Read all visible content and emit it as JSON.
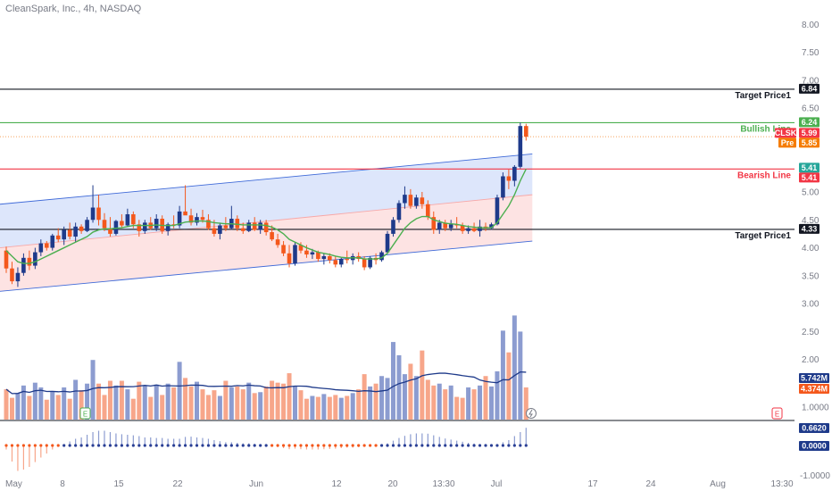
{
  "header": {
    "title": "CleanSpark, Inc., 4h, NASDAQ"
  },
  "chart_data": {
    "type": "candlestick",
    "title": "CleanSpark, Inc., 4h, NASDAQ",
    "symbol": "CLSK",
    "yaxis": {
      "ticks": [
        "8.00",
        "7.50",
        "7.00",
        "6.50",
        "6.00",
        "5.50",
        "5.00",
        "4.50",
        "4.00",
        "3.50",
        "3.00",
        "2.50",
        "2.00",
        "1.0000"
      ],
      "min": 0.9,
      "max": 8.1
    },
    "xaxis": {
      "ticks": [
        "May",
        "8",
        "15",
        "22",
        "Jun",
        "12",
        "20",
        "13:30",
        "Jul",
        "17",
        "24",
        "Aug",
        "13:30"
      ]
    },
    "candles": [
      [
        3.95,
        4.02,
        3.55,
        3.63
      ],
      [
        3.63,
        3.75,
        3.35,
        3.4
      ],
      [
        3.4,
        3.65,
        3.3,
        3.55
      ],
      [
        3.55,
        3.9,
        3.5,
        3.82
      ],
      [
        3.82,
        3.95,
        3.6,
        3.68
      ],
      [
        3.68,
        4.0,
        3.62,
        3.92
      ],
      [
        3.92,
        4.15,
        3.85,
        4.08
      ],
      [
        4.08,
        4.12,
        3.95,
        4.0
      ],
      [
        4.0,
        4.25,
        3.95,
        4.22
      ],
      [
        4.22,
        4.35,
        4.1,
        4.15
      ],
      [
        4.15,
        4.38,
        4.05,
        4.32
      ],
      [
        4.32,
        4.45,
        4.15,
        4.2
      ],
      [
        4.2,
        4.45,
        4.1,
        4.38
      ],
      [
        4.38,
        4.42,
        4.25,
        4.3
      ],
      [
        4.3,
        4.55,
        4.28,
        4.5
      ],
      [
        4.5,
        5.12,
        4.45,
        4.72
      ],
      [
        4.72,
        4.95,
        4.4,
        4.5
      ],
      [
        4.5,
        4.62,
        4.3,
        4.35
      ],
      [
        4.35,
        4.55,
        4.2,
        4.25
      ],
      [
        4.25,
        4.5,
        4.22,
        4.48
      ],
      [
        4.48,
        4.6,
        4.35,
        4.4
      ],
      [
        4.4,
        4.7,
        4.38,
        4.6
      ],
      [
        4.6,
        4.65,
        4.35,
        4.42
      ],
      [
        4.42,
        4.5,
        4.2,
        4.3
      ],
      [
        4.3,
        4.5,
        4.25,
        4.45
      ],
      [
        4.45,
        4.55,
        4.32,
        4.35
      ],
      [
        4.35,
        4.6,
        4.3,
        4.52
      ],
      [
        4.52,
        4.58,
        4.25,
        4.3
      ],
      [
        4.3,
        4.45,
        4.22,
        4.42
      ],
      [
        4.42,
        4.58,
        4.35,
        4.4
      ],
      [
        4.4,
        4.75,
        4.35,
        4.65
      ],
      [
        4.65,
        5.12,
        4.6,
        4.58
      ],
      [
        4.58,
        4.7,
        4.4,
        4.45
      ],
      [
        4.45,
        4.62,
        4.4,
        4.55
      ],
      [
        4.55,
        4.68,
        4.45,
        4.5
      ],
      [
        4.5,
        4.6,
        4.32,
        4.35
      ],
      [
        4.35,
        4.5,
        4.2,
        4.25
      ],
      [
        4.25,
        4.45,
        4.15,
        4.4
      ],
      [
        4.4,
        4.55,
        4.3,
        4.35
      ],
      [
        4.35,
        4.75,
        4.32,
        4.52
      ],
      [
        4.52,
        4.58,
        4.3,
        4.35
      ],
      [
        4.35,
        4.45,
        4.25,
        4.3
      ],
      [
        4.3,
        4.5,
        4.28,
        4.45
      ],
      [
        4.45,
        4.55,
        4.3,
        4.32
      ],
      [
        4.32,
        4.5,
        4.25,
        4.45
      ],
      [
        4.45,
        4.5,
        4.22,
        4.28
      ],
      [
        4.28,
        4.4,
        4.12,
        4.15
      ],
      [
        4.15,
        4.25,
        4.0,
        4.05
      ],
      [
        4.05,
        4.12,
        3.85,
        3.9
      ],
      [
        3.9,
        4.05,
        3.65,
        3.72
      ],
      [
        3.72,
        4.1,
        3.68,
        4.05
      ],
      [
        4.05,
        4.1,
        3.9,
        3.95
      ],
      [
        3.95,
        4.05,
        3.82,
        3.88
      ],
      [
        3.88,
        3.98,
        3.8,
        3.92
      ],
      [
        3.92,
        3.95,
        3.75,
        3.8
      ],
      [
        3.8,
        3.9,
        3.7,
        3.85
      ],
      [
        3.85,
        3.9,
        3.72,
        3.78
      ],
      [
        3.78,
        3.85,
        3.65,
        3.7
      ],
      [
        3.7,
        3.82,
        3.65,
        3.8
      ],
      [
        3.8,
        3.95,
        3.72,
        3.78
      ],
      [
        3.78,
        3.9,
        3.7,
        3.85
      ],
      [
        3.85,
        3.92,
        3.75,
        3.8
      ],
      [
        3.8,
        3.85,
        3.6,
        3.65
      ],
      [
        3.65,
        3.85,
        3.62,
        3.82
      ],
      [
        3.82,
        3.9,
        3.7,
        3.78
      ],
      [
        3.78,
        3.95,
        3.75,
        3.92
      ],
      [
        3.92,
        4.3,
        3.9,
        4.25
      ],
      [
        4.25,
        4.55,
        4.2,
        4.5
      ],
      [
        4.5,
        4.85,
        4.45,
        4.8
      ],
      [
        4.8,
        5.1,
        4.7,
        4.95
      ],
      [
        4.95,
        5.05,
        4.7,
        4.75
      ],
      [
        4.75,
        4.95,
        4.7,
        4.9
      ],
      [
        4.9,
        5.0,
        4.7,
        4.78
      ],
      [
        4.78,
        4.85,
        4.5,
        4.55
      ],
      [
        4.55,
        4.65,
        4.25,
        4.32
      ],
      [
        4.32,
        4.5,
        4.25,
        4.45
      ],
      [
        4.45,
        4.5,
        4.3,
        4.35
      ],
      [
        4.35,
        4.5,
        4.3,
        4.42
      ],
      [
        4.42,
        4.55,
        4.35,
        4.4
      ],
      [
        4.4,
        4.45,
        4.25,
        4.3
      ],
      [
        4.3,
        4.4,
        4.25,
        4.35
      ],
      [
        4.35,
        4.45,
        4.28,
        4.3
      ],
      [
        4.3,
        4.5,
        4.2,
        4.38
      ],
      [
        4.38,
        4.45,
        4.3,
        4.35
      ],
      [
        4.35,
        4.45,
        4.32,
        4.42
      ],
      [
        4.42,
        4.95,
        4.4,
        4.9
      ],
      [
        4.9,
        5.35,
        4.85,
        5.28
      ],
      [
        5.28,
        5.4,
        5.05,
        5.2
      ],
      [
        5.2,
        5.48,
        5.1,
        5.45
      ],
      [
        5.45,
        6.24,
        5.42,
        6.18
      ],
      [
        6.18,
        6.22,
        5.92,
        5.99
      ]
    ],
    "ema_line": [
      3.95,
      3.85,
      3.75,
      3.72,
      3.72,
      3.75,
      3.8,
      3.85,
      3.9,
      3.95,
      4.0,
      4.05,
      4.1,
      4.15,
      4.2,
      4.28,
      4.32,
      4.34,
      4.34,
      4.35,
      4.36,
      4.38,
      4.4,
      4.4,
      4.4,
      4.4,
      4.41,
      4.4,
      4.4,
      4.4,
      4.43,
      4.46,
      4.47,
      4.48,
      4.48,
      4.47,
      4.45,
      4.44,
      4.43,
      4.43,
      4.42,
      4.41,
      4.41,
      4.41,
      4.41,
      4.4,
      4.37,
      4.32,
      4.25,
      4.15,
      4.1,
      4.05,
      4.0,
      3.96,
      3.92,
      3.9,
      3.88,
      3.85,
      3.83,
      3.82,
      3.82,
      3.82,
      3.8,
      3.8,
      3.8,
      3.82,
      3.9,
      4.05,
      4.2,
      4.35,
      4.45,
      4.52,
      4.56,
      4.56,
      4.5,
      4.47,
      4.44,
      4.43,
      4.42,
      4.4,
      4.38,
      4.37,
      4.36,
      4.36,
      4.36,
      4.45,
      4.6,
      4.75,
      4.95,
      5.2,
      5.41
    ],
    "channel": {
      "upper": {
        "start": [
          0,
          4.78
        ],
        "end": [
          90,
          5.68
        ]
      },
      "lower": {
        "start": [
          0,
          3.22
        ],
        "end": [
          90,
          4.12
        ]
      },
      "mid": {
        "start": [
          0,
          4.0
        ],
        "end": [
          90,
          4.95
        ]
      }
    },
    "horizontal_lines": [
      {
        "name": "Target Price1",
        "value": 6.84,
        "color": "#131722"
      },
      {
        "name": "Bullish Line",
        "value": 6.24,
        "color": "#4caf50"
      },
      {
        "name": "Bearish Line",
        "value": 5.41,
        "color": "#f23645"
      },
      {
        "name": "Target Price1",
        "value": 4.33,
        "color": "#131722"
      }
    ],
    "price_labels": [
      {
        "text": "6.84",
        "color": "#131722"
      },
      {
        "text": "6.24",
        "color": "#4caf50"
      },
      {
        "text": "CLSK",
        "color": "#f23645"
      },
      {
        "text": "5.99",
        "color": "#f23645"
      },
      {
        "text": "Pre",
        "color": "#f57c00"
      },
      {
        "text": "5.85",
        "color": "#f57c00"
      },
      {
        "text": "5.41",
        "color": "#f23645"
      },
      {
        "text": "5.41",
        "color": "#26a69a"
      },
      {
        "text": "4.33",
        "color": "#131722"
      }
    ],
    "volume": {
      "values": [
        3.2,
        2.3,
        2.8,
        3.6,
        2.5,
        3.9,
        3.4,
        2.1,
        3.0,
        2.6,
        3.4,
        2.2,
        4.2,
        3.1,
        3.8,
        6.3,
        3.8,
        2.6,
        4.1,
        3.6,
        4.1,
        3.2,
        2.2,
        4.0,
        3.6,
        2.4,
        3.7,
        2.6,
        3.8,
        3.4,
        6.1,
        4.4,
        3.5,
        4.0,
        3.2,
        2.6,
        3.1,
        2.5,
        4.1,
        3.4,
        3.5,
        3.2,
        3.9,
        2.8,
        2.9,
        3.5,
        4.1,
        3.9,
        3.8,
        4.9,
        3.5,
        3.1,
        2.2,
        2.5,
        2.4,
        2.7,
        2.4,
        2.6,
        2.3,
        2.5,
        2.8,
        3.2,
        4.8,
        3.5,
        3.8,
        4.6,
        4.4,
        8.2,
        6.8,
        4.8,
        5.9,
        4.6,
        7.3,
        4.2,
        3.6,
        3.8,
        3.2,
        3.6,
        2.4,
        2.3,
        3.4,
        3.2,
        3.6,
        4.6,
        3.5,
        5.1,
        9.4,
        7.1,
        11.0,
        9.3,
        3.4
      ],
      "labels": [
        "5.742M",
        "4.374M"
      ],
      "colors": {
        "up": "#8c9cd0",
        "down": "#f7a68a"
      },
      "sma_color": "#1e3a8a"
    },
    "oscillator": {
      "labels": [
        "0.6620",
        "0.0000",
        "-1.0000"
      ],
      "values": [
        -0.15,
        -0.6,
        -0.95,
        -0.9,
        -0.8,
        -0.62,
        -0.45,
        -0.3,
        -0.15,
        -0.05,
        0.05,
        0.15,
        0.25,
        0.3,
        0.4,
        0.5,
        0.55,
        0.55,
        0.5,
        0.45,
        0.42,
        0.4,
        0.38,
        0.35,
        0.3,
        0.3,
        0.28,
        0.28,
        0.25,
        0.25,
        0.25,
        0.32,
        0.33,
        0.3,
        0.28,
        0.25,
        0.2,
        0.16,
        0.12,
        0.12,
        0.1,
        0.08,
        0.08,
        0.06,
        0.05,
        0.02,
        -0.02,
        -0.06,
        -0.1,
        -0.14,
        -0.12,
        -0.14,
        -0.15,
        -0.15,
        -0.15,
        -0.14,
        -0.13,
        -0.12,
        -0.1,
        -0.08,
        -0.08,
        -0.06,
        -0.05,
        -0.04,
        -0.03,
        0.0,
        0.08,
        0.18,
        0.28,
        0.36,
        0.42,
        0.45,
        0.45,
        0.44,
        0.38,
        0.32,
        0.26,
        0.22,
        0.18,
        0.14,
        0.1,
        0.07,
        0.05,
        0.03,
        0.02,
        0.05,
        0.12,
        0.2,
        0.35,
        0.5,
        0.66
      ]
    },
    "badges": [
      "E",
      "E"
    ]
  }
}
